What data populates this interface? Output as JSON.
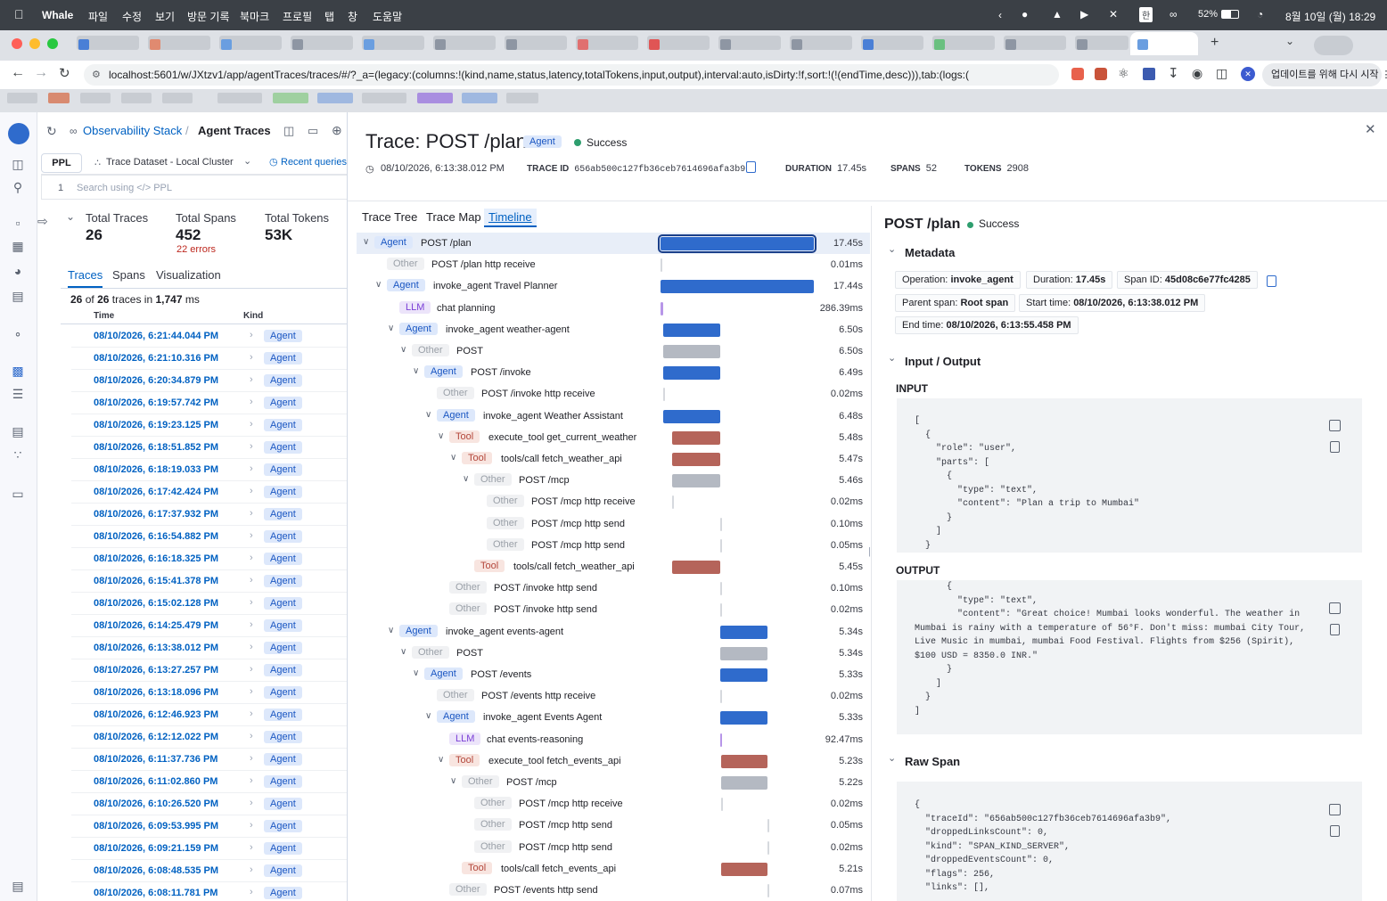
{
  "menubar": {
    "app_name": "Whale",
    "menus": [
      "파일",
      "수정",
      "보기",
      "방문 기록",
      "북마크",
      "프로필",
      "탭",
      "창",
      "도움말"
    ],
    "battery": "52%",
    "clock": "8월 10일 (월) 18:29"
  },
  "browser": {
    "url": "localhost:5601/w/JXtzv1/app/agentTraces/traces/#/?_a=(legacy:(columns:!(kind,name,status,latency,totalTokens,input,output),interval:auto,isDirty:!f,sort:!(!(endTime,desc))),tab:(logs:(",
    "update_button": "업데이트를 위해 다시 시작"
  },
  "left": {
    "breadcrumb_root": "Observability Stack",
    "breadcrumb_current": "Agent Traces",
    "query_lang": "PPL",
    "dataset": "Trace Dataset - Local Cluster",
    "recent_queries": "Recent queries",
    "line_number": "1",
    "search_placeholder": "Search using </> PPL",
    "stats": {
      "traces_label": "Total Traces",
      "traces_value": "26",
      "spans_label": "Total Spans",
      "spans_value": "452",
      "spans_errors": "22 errors",
      "tokens_label": "Total Tokens",
      "tokens_value": "53K"
    },
    "tabs": [
      "Traces",
      "Spans",
      "Visualization"
    ],
    "summary_pre": "26",
    "summary_of": "of",
    "summary_total": "26",
    "summary_post": "traces in",
    "summary_ms": "1,747",
    "summary_unit": "ms",
    "col_time": "Time",
    "col_kind": "Kind",
    "rows": [
      {
        "time": "08/10/2026, 6:21:44.044 PM",
        "kind": "Agent"
      },
      {
        "time": "08/10/2026, 6:21:10.316 PM",
        "kind": "Agent"
      },
      {
        "time": "08/10/2026, 6:20:34.879 PM",
        "kind": "Agent"
      },
      {
        "time": "08/10/2026, 6:19:57.742 PM",
        "kind": "Agent"
      },
      {
        "time": "08/10/2026, 6:19:23.125 PM",
        "kind": "Agent"
      },
      {
        "time": "08/10/2026, 6:18:51.852 PM",
        "kind": "Agent"
      },
      {
        "time": "08/10/2026, 6:18:19.033 PM",
        "kind": "Agent"
      },
      {
        "time": "08/10/2026, 6:17:42.424 PM",
        "kind": "Agent"
      },
      {
        "time": "08/10/2026, 6:17:37.932 PM",
        "kind": "Agent"
      },
      {
        "time": "08/10/2026, 6:16:54.882 PM",
        "kind": "Agent"
      },
      {
        "time": "08/10/2026, 6:16:18.325 PM",
        "kind": "Agent"
      },
      {
        "time": "08/10/2026, 6:15:41.378 PM",
        "kind": "Agent"
      },
      {
        "time": "08/10/2026, 6:15:02.128 PM",
        "kind": "Agent"
      },
      {
        "time": "08/10/2026, 6:14:25.479 PM",
        "kind": "Agent"
      },
      {
        "time": "08/10/2026, 6:13:38.012 PM",
        "kind": "Agent"
      },
      {
        "time": "08/10/2026, 6:13:27.257 PM",
        "kind": "Agent"
      },
      {
        "time": "08/10/2026, 6:13:18.096 PM",
        "kind": "Agent"
      },
      {
        "time": "08/10/2026, 6:12:46.923 PM",
        "kind": "Agent"
      },
      {
        "time": "08/10/2026, 6:12:12.022 PM",
        "kind": "Agent"
      },
      {
        "time": "08/10/2026, 6:11:37.736 PM",
        "kind": "Agent"
      },
      {
        "time": "08/10/2026, 6:11:02.860 PM",
        "kind": "Agent"
      },
      {
        "time": "08/10/2026, 6:10:26.520 PM",
        "kind": "Agent"
      },
      {
        "time": "08/10/2026, 6:09:53.995 PM",
        "kind": "Agent"
      },
      {
        "time": "08/10/2026, 6:09:21.159 PM",
        "kind": "Agent"
      },
      {
        "time": "08/10/2026, 6:08:48.535 PM",
        "kind": "Agent"
      },
      {
        "time": "08/10/2026, 6:08:11.781 PM",
        "kind": "Agent"
      }
    ]
  },
  "trace": {
    "title": "Trace: POST /plan",
    "kind": "Agent",
    "status": "Success",
    "timestamp": "08/10/2026, 6:13:38.012 PM",
    "trace_id_label": "TRACE ID",
    "trace_id": "656ab500c127fb36ceb7614696afa3b9",
    "duration_label": "DURATION",
    "duration": "17.45s",
    "spans_label": "SPANS",
    "spans": "52",
    "tokens_label": "TOKENS",
    "tokens": "2908",
    "view_tabs": [
      "Trace Tree",
      "Trace Map",
      "Timeline"
    ],
    "total_seconds": 17.45,
    "span_list": [
      {
        "kind": "Agent",
        "name": "POST /plan",
        "duration": "17.45s",
        "depth": 0,
        "caret": true,
        "start": 0,
        "dur": 17.45,
        "selected": true
      },
      {
        "kind": "Other",
        "name": "POST /plan http receive",
        "duration": "0.01ms",
        "depth": 1,
        "caret": false,
        "start": 0,
        "dur": 1e-05
      },
      {
        "kind": "Agent",
        "name": "invoke_agent Travel Planner",
        "duration": "17.44s",
        "depth": 1,
        "caret": true,
        "start": 0.01,
        "dur": 17.44
      },
      {
        "kind": "LLM",
        "name": "chat planning",
        "duration": "286.39ms",
        "depth": 2,
        "caret": false,
        "start": 0.01,
        "dur": 0.286
      },
      {
        "kind": "Agent",
        "name": "invoke_agent weather-agent",
        "duration": "6.50s",
        "depth": 2,
        "caret": true,
        "start": 0.3,
        "dur": 6.5
      },
      {
        "kind": "Other",
        "name": "POST",
        "duration": "6.50s",
        "depth": 3,
        "caret": true,
        "start": 0.3,
        "dur": 6.5
      },
      {
        "kind": "Agent",
        "name": "POST /invoke",
        "duration": "6.49s",
        "depth": 4,
        "caret": true,
        "start": 0.3,
        "dur": 6.49
      },
      {
        "kind": "Other",
        "name": "POST /invoke http receive",
        "duration": "0.02ms",
        "depth": 5,
        "caret": false,
        "start": 0.3,
        "dur": 2e-05
      },
      {
        "kind": "Agent",
        "name": "invoke_agent Weather Assistant",
        "duration": "6.48s",
        "depth": 5,
        "caret": true,
        "start": 0.31,
        "dur": 6.48
      },
      {
        "kind": "Tool",
        "name": "execute_tool get_current_weather",
        "duration": "5.48s",
        "depth": 6,
        "caret": true,
        "start": 1.3,
        "dur": 5.48
      },
      {
        "kind": "Tool",
        "name": "tools/call fetch_weather_api",
        "duration": "5.47s",
        "depth": 7,
        "caret": true,
        "start": 1.31,
        "dur": 5.47
      },
      {
        "kind": "Other",
        "name": "POST /mcp",
        "duration": "5.46s",
        "depth": 8,
        "caret": true,
        "start": 1.32,
        "dur": 5.46
      },
      {
        "kind": "Other",
        "name": "POST /mcp http receive",
        "duration": "0.02ms",
        "depth": 9,
        "caret": false,
        "start": 1.32,
        "dur": 2e-05
      },
      {
        "kind": "Other",
        "name": "POST /mcp http send",
        "duration": "0.10ms",
        "depth": 9,
        "caret": false,
        "start": 6.78,
        "dur": 0.0001
      },
      {
        "kind": "Other",
        "name": "POST /mcp http send",
        "duration": "0.05ms",
        "depth": 9,
        "caret": false,
        "start": 6.78,
        "dur": 5e-05
      },
      {
        "kind": "Tool",
        "name": "tools/call fetch_weather_api",
        "duration": "5.45s",
        "depth": 8,
        "caret": false,
        "start": 1.33,
        "dur": 5.45
      },
      {
        "kind": "Other",
        "name": "POST /invoke http send",
        "duration": "0.10ms",
        "depth": 6,
        "caret": false,
        "start": 6.78,
        "dur": 0.0001
      },
      {
        "kind": "Other",
        "name": "POST /invoke http send",
        "duration": "0.02ms",
        "depth": 6,
        "caret": false,
        "start": 6.78,
        "dur": 2e-05
      },
      {
        "kind": "Agent",
        "name": "invoke_agent events-agent",
        "duration": "5.34s",
        "depth": 2,
        "caret": true,
        "start": 6.8,
        "dur": 5.34
      },
      {
        "kind": "Other",
        "name": "POST",
        "duration": "5.34s",
        "depth": 3,
        "caret": true,
        "start": 6.8,
        "dur": 5.34
      },
      {
        "kind": "Agent",
        "name": "POST /events",
        "duration": "5.33s",
        "depth": 4,
        "caret": true,
        "start": 6.8,
        "dur": 5.33
      },
      {
        "kind": "Other",
        "name": "POST /events http receive",
        "duration": "0.02ms",
        "depth": 5,
        "caret": false,
        "start": 6.8,
        "dur": 2e-05
      },
      {
        "kind": "Agent",
        "name": "invoke_agent Events Agent",
        "duration": "5.33s",
        "depth": 5,
        "caret": true,
        "start": 6.81,
        "dur": 5.33
      },
      {
        "kind": "LLM",
        "name": "chat events-reasoning",
        "duration": "92.47ms",
        "depth": 6,
        "caret": false,
        "start": 6.81,
        "dur": 0.092
      },
      {
        "kind": "Tool",
        "name": "execute_tool fetch_events_api",
        "duration": "5.23s",
        "depth": 6,
        "caret": true,
        "start": 6.9,
        "dur": 5.23
      },
      {
        "kind": "Other",
        "name": "POST /mcp",
        "duration": "5.22s",
        "depth": 7,
        "caret": true,
        "start": 6.91,
        "dur": 5.22
      },
      {
        "kind": "Other",
        "name": "POST /mcp http receive",
        "duration": "0.02ms",
        "depth": 8,
        "caret": false,
        "start": 6.91,
        "dur": 2e-05
      },
      {
        "kind": "Other",
        "name": "POST /mcp http send",
        "duration": "0.05ms",
        "depth": 8,
        "caret": false,
        "start": 12.13,
        "dur": 5e-05
      },
      {
        "kind": "Other",
        "name": "POST /mcp http send",
        "duration": "0.02ms",
        "depth": 8,
        "caret": false,
        "start": 12.13,
        "dur": 2e-05
      },
      {
        "kind": "Tool",
        "name": "tools/call fetch_events_api",
        "duration": "5.21s",
        "depth": 7,
        "caret": false,
        "start": 6.92,
        "dur": 5.21
      },
      {
        "kind": "Other",
        "name": "POST /events http send",
        "duration": "0.07ms",
        "depth": 6,
        "caret": false,
        "start": 12.13,
        "dur": 7e-05
      }
    ]
  },
  "detail": {
    "title": "POST /plan",
    "status": "Success",
    "metadata_label": "Metadata",
    "operation_label": "Operation:",
    "operation": "invoke_agent",
    "duration_label": "Duration:",
    "duration": "17.45s",
    "spanid_label": "Span ID:",
    "span_id": "45d08c6e77fc4285",
    "parent_label": "Parent span:",
    "parent": "Root span",
    "start_label": "Start time:",
    "start": "08/10/2026, 6:13:38.012 PM",
    "end_label": "End time:",
    "end": "08/10/2026, 6:13:55.458 PM",
    "io_label": "Input / Output",
    "input_label": "INPUT",
    "output_label": "OUTPUT",
    "raw_label": "Raw Span",
    "input_lines": [
      "[",
      "  {",
      "    \"role\": \"user\",",
      "    \"parts\": [",
      "      {",
      "        \"type\": \"text\",",
      "        \"content\": \"Plan a trip to Mumbai\"",
      "      }",
      "    ]",
      "  }"
    ],
    "output_lines": [
      "      {",
      "        \"type\": \"text\",",
      "        \"content\": \"Great choice! Mumbai looks wonderful. The weather in",
      "Mumbai is rainy with a temperature of 56°F. Don't miss: mumbai City Tour,",
      "Live Music in mumbai, mumbai Food Festival. Flights from $256 (Spirit),",
      "$100 USD = 8350.0 INR.\"",
      "      }",
      "    ]",
      "  }",
      "]"
    ],
    "raw_lines": [
      "{",
      "  \"traceId\": \"656ab500c127fb36ceb7614696afa3b9\",",
      "  \"droppedLinksCount\": 0,",
      "  \"kind\": \"SPAN_KIND_SERVER\",",
      "  \"droppedEventsCount\": 0,",
      "  \"flags\": 256,",
      "  \"links\": [],"
    ]
  }
}
